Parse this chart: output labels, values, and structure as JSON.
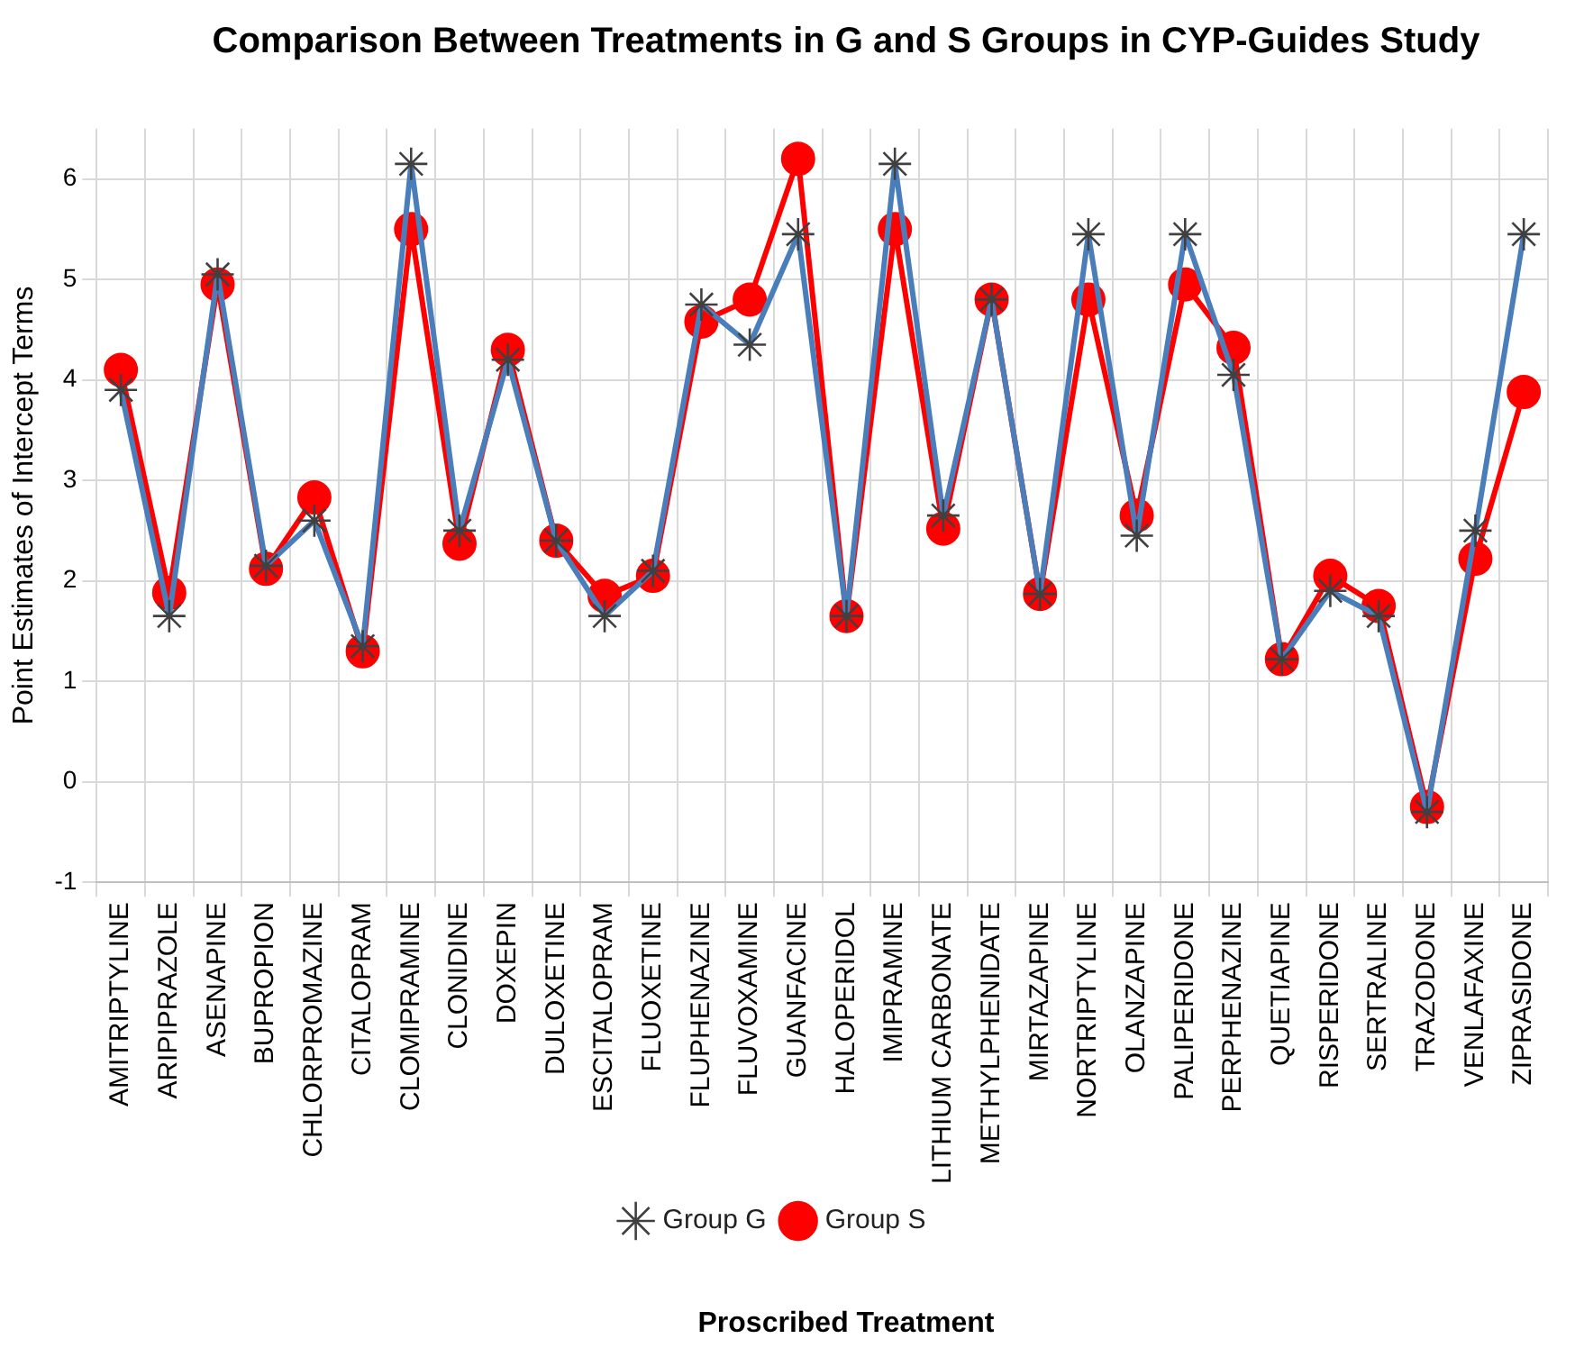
{
  "chart_data": {
    "type": "line",
    "title": "Comparison Between Treatments in G and S Groups in CYP-Guides Study",
    "xlabel": "Proscribed Treatment",
    "ylabel": "Point Estimates of Intercept Terms",
    "categories": [
      "AMITRIPTYLINE",
      "ARIPIPRAZOLE",
      "ASENAPINE",
      "BUPROPION",
      "CHLORPROMAZINE",
      "CITALOPRAM",
      "CLOMIPRAMINE",
      "CLONIDINE",
      "DOXEPIN",
      "DULOXETINE",
      "ESCITALOPRAM",
      "FLUOXETINE",
      "FLUPHENAZINE",
      "FLUVOXAMINE",
      "GUANFACINE",
      "HALOPERIDOL",
      "IMIPRAMINE",
      "LITHIUM CARBONATE",
      "METHYLPHENIDATE",
      "MIRTAZAPINE",
      "NORTRIPTYLINE",
      "OLANZAPINE",
      "PALIPERIDONE",
      "PERPHENAZINE",
      "QUETIAPINE",
      "RISPERIDONE",
      "SERTRALINE",
      "TRAZODONE",
      "VENLAFAXINE",
      "ZIPRASIDONE"
    ],
    "series": [
      {
        "name": "Group G",
        "color": "#4a7ebb",
        "marker": "cross",
        "values": [
          3.9,
          1.65,
          5.05,
          2.15,
          2.6,
          1.35,
          6.15,
          2.5,
          4.2,
          2.4,
          1.65,
          2.1,
          4.75,
          4.35,
          5.45,
          1.65,
          6.15,
          2.65,
          4.8,
          1.87,
          5.45,
          2.45,
          5.45,
          4.05,
          1.22,
          1.9,
          1.65,
          -0.3,
          2.5,
          5.45
        ]
      },
      {
        "name": "Group S",
        "color": "#ff0000",
        "marker": "circle",
        "values": [
          4.1,
          1.88,
          4.95,
          2.12,
          2.83,
          1.3,
          5.5,
          2.37,
          4.3,
          2.4,
          1.85,
          2.05,
          4.58,
          4.8,
          6.2,
          1.65,
          5.5,
          2.52,
          4.8,
          1.87,
          4.8,
          2.65,
          4.95,
          4.32,
          1.22,
          2.05,
          1.75,
          -0.25,
          2.22,
          3.88
        ]
      }
    ],
    "ylim": [
      -1,
      6.5
    ],
    "yticks": [
      -1,
      0,
      1,
      2,
      3,
      4,
      5,
      6
    ],
    "grid": true,
    "legend": "bottom",
    "line_style": "solid"
  }
}
